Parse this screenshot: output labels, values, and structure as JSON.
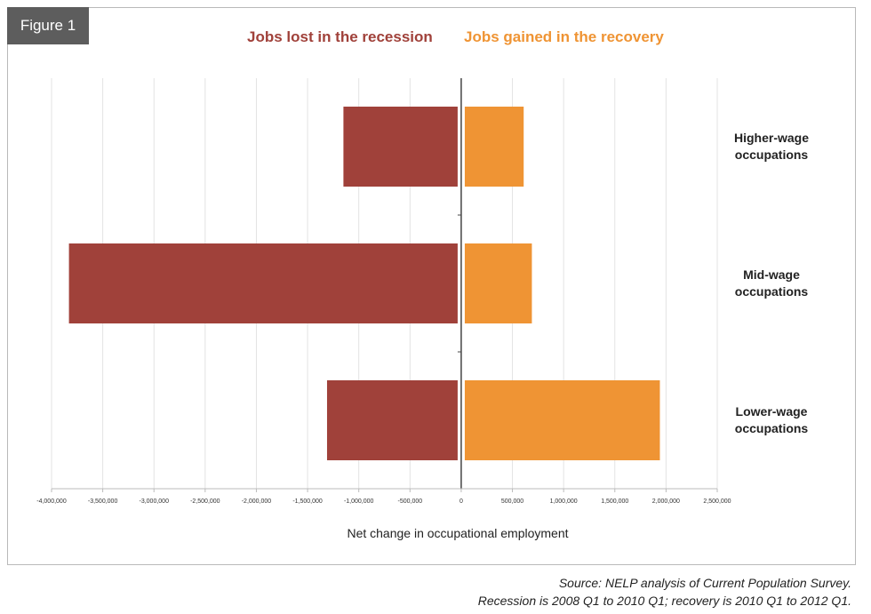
{
  "figure_label": "Figure 1",
  "legend": {
    "lost": "Jobs lost in the recession",
    "gained": "Jobs gained in the recovery"
  },
  "colors": {
    "lost": "#a0413a",
    "gained": "#ef9434",
    "grid": "#e3e3e3",
    "axis": "#444444"
  },
  "chart_data": {
    "type": "bar",
    "orientation": "horizontal",
    "categories": [
      [
        "Higher-wage",
        "occupations"
      ],
      [
        "Mid-wage",
        "occupations"
      ],
      [
        "Lower-wage",
        "occupations"
      ]
    ],
    "series": [
      {
        "name": "Jobs lost in the recession",
        "values": [
          -1150000,
          -3830000,
          -1310000
        ]
      },
      {
        "name": "Jobs gained in the recovery",
        "values": [
          610000,
          690000,
          1940000
        ]
      }
    ],
    "xlabel": "Net change in occupational employment",
    "xlim": [
      -4000000,
      2500000
    ],
    "xticks": [
      -4000000,
      -3500000,
      -3000000,
      -2500000,
      -2000000,
      -1500000,
      -1000000,
      -500000,
      0,
      500000,
      1000000,
      1500000,
      2000000,
      2500000
    ],
    "xtick_labels": [
      "-4,000,000",
      "-3,500,000",
      "-3,000,000",
      "-2,500,000",
      "-2,000,000",
      "-1,500,000",
      "-1,000,000",
      "-500,000",
      "0",
      "500,000",
      "1,000,000",
      "1,500,000",
      "2,000,000",
      "2,500,000"
    ],
    "grid": true,
    "legend_position": "top"
  },
  "source": {
    "line1": "Source: NELP analysis of Current Population Survey.",
    "line2": "Recession is 2008 Q1 to 2010 Q1; recovery is 2010 Q1 to 2012 Q1."
  }
}
